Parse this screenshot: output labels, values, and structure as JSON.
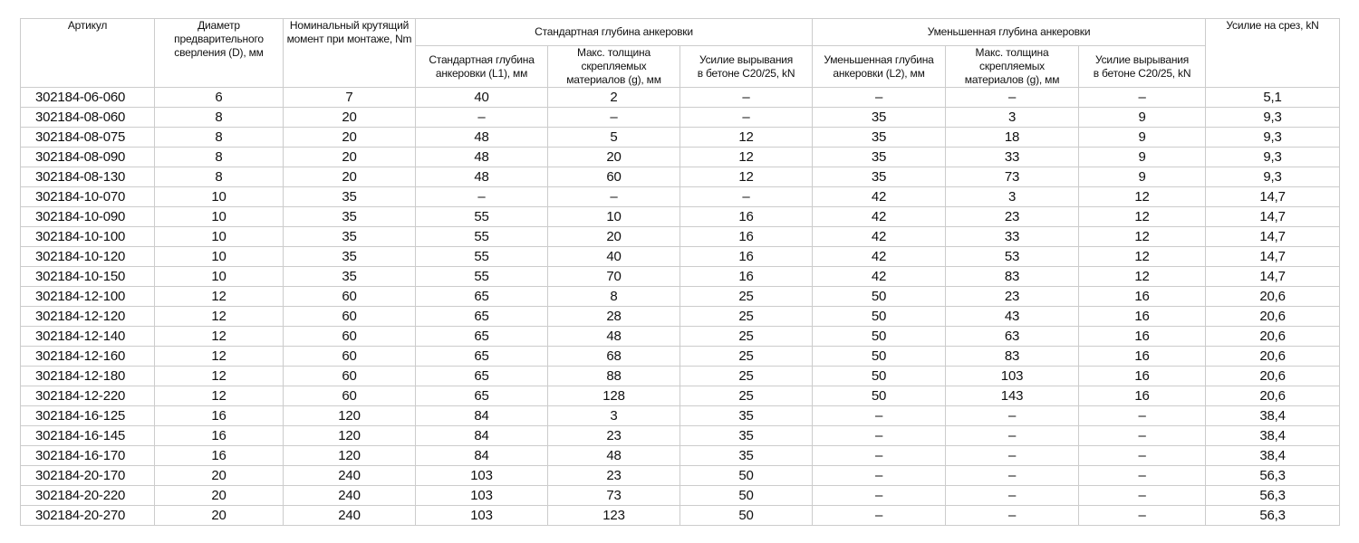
{
  "table": {
    "header": {
      "article": "Артикул",
      "diameter": "Диаметр предварительного\nсверления (D), мм",
      "torque": "Номинальный крутящий\nмомент при монтаже, Nm",
      "group_standard": "Стандартная глубина анкеровки",
      "group_reduced": "Уменьшенная глубина анкеровки",
      "sub_standard_depth": "Стандартная глубина\nанкеровки (L1), мм",
      "sub_standard_thickness": "Макс. толщина скрепляемых\nматериалов (g), мм",
      "sub_standard_pullout": "Усилие вырывания\nв бетоне C20/25, kN",
      "sub_reduced_depth": "Уменьшенная глубина\nанкеровки (L2), мм",
      "sub_reduced_thickness": "Макс. толщина скрепляемых\nматериалов (g), мм",
      "sub_reduced_pullout": "Усилие вырывания\nв бетоне C20/25, kN",
      "shear": "Усилие на срез, kN"
    },
    "rows": [
      [
        "302184-06-060",
        "6",
        "7",
        "40",
        "2",
        "–",
        "–",
        "–",
        "–",
        "5,1"
      ],
      [
        "302184-08-060",
        "8",
        "20",
        "–",
        "–",
        "–",
        "35",
        "3",
        "9",
        "9,3"
      ],
      [
        "302184-08-075",
        "8",
        "20",
        "48",
        "5",
        "12",
        "35",
        "18",
        "9",
        "9,3"
      ],
      [
        "302184-08-090",
        "8",
        "20",
        "48",
        "20",
        "12",
        "35",
        "33",
        "9",
        "9,3"
      ],
      [
        "302184-08-130",
        "8",
        "20",
        "48",
        "60",
        "12",
        "35",
        "73",
        "9",
        "9,3"
      ],
      [
        "302184-10-070",
        "10",
        "35",
        "–",
        "–",
        "–",
        "42",
        "3",
        "12",
        "14,7"
      ],
      [
        "302184-10-090",
        "10",
        "35",
        "55",
        "10",
        "16",
        "42",
        "23",
        "12",
        "14,7"
      ],
      [
        "302184-10-100",
        "10",
        "35",
        "55",
        "20",
        "16",
        "42",
        "33",
        "12",
        "14,7"
      ],
      [
        "302184-10-120",
        "10",
        "35",
        "55",
        "40",
        "16",
        "42",
        "53",
        "12",
        "14,7"
      ],
      [
        "302184-10-150",
        "10",
        "35",
        "55",
        "70",
        "16",
        "42",
        "83",
        "12",
        "14,7"
      ],
      [
        "302184-12-100",
        "12",
        "60",
        "65",
        "8",
        "25",
        "50",
        "23",
        "16",
        "20,6"
      ],
      [
        "302184-12-120",
        "12",
        "60",
        "65",
        "28",
        "25",
        "50",
        "43",
        "16",
        "20,6"
      ],
      [
        "302184-12-140",
        "12",
        "60",
        "65",
        "48",
        "25",
        "50",
        "63",
        "16",
        "20,6"
      ],
      [
        "302184-12-160",
        "12",
        "60",
        "65",
        "68",
        "25",
        "50",
        "83",
        "16",
        "20,6"
      ],
      [
        "302184-12-180",
        "12",
        "60",
        "65",
        "88",
        "25",
        "50",
        "103",
        "16",
        "20,6"
      ],
      [
        "302184-12-220",
        "12",
        "60",
        "65",
        "128",
        "25",
        "50",
        "143",
        "16",
        "20,6"
      ],
      [
        "302184-16-125",
        "16",
        "120",
        "84",
        "3",
        "35",
        "–",
        "–",
        "–",
        "38,4"
      ],
      [
        "302184-16-145",
        "16",
        "120",
        "84",
        "23",
        "35",
        "–",
        "–",
        "–",
        "38,4"
      ],
      [
        "302184-16-170",
        "16",
        "120",
        "84",
        "48",
        "35",
        "–",
        "–",
        "–",
        "38,4"
      ],
      [
        "302184-20-170",
        "20",
        "240",
        "103",
        "23",
        "50",
        "–",
        "–",
        "–",
        "56,3"
      ],
      [
        "302184-20-220",
        "20",
        "240",
        "103",
        "73",
        "50",
        "–",
        "–",
        "–",
        "56,3"
      ],
      [
        "302184-20-270",
        "20",
        "240",
        "103",
        "123",
        "50",
        "–",
        "–",
        "–",
        "56,3"
      ]
    ],
    "colors": {
      "border": "#cccccc",
      "text": "#111111",
      "background": "#ffffff"
    }
  }
}
